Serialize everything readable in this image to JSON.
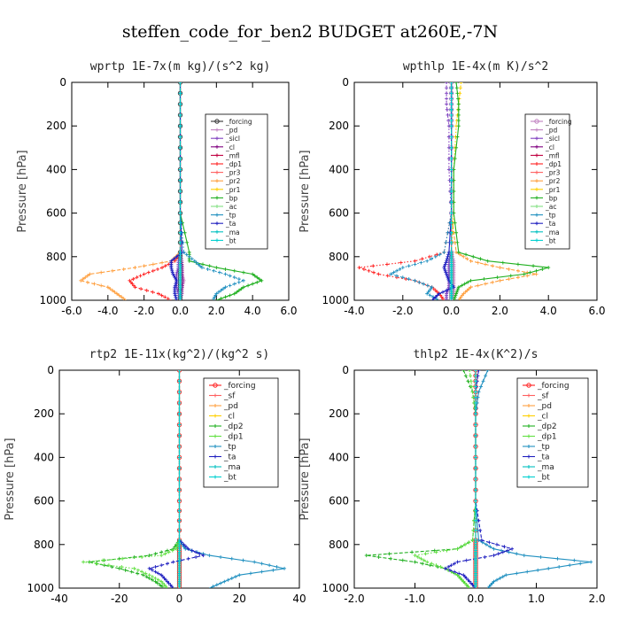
{
  "figure_title": "steffen_code_for_ben2  BUDGET at260E,-7N",
  "chart_data": [
    {
      "type": "line",
      "title": "wprtp   1E-7x(m kg)/(s^2 kg)",
      "ylabel": "Pressure [hPa]",
      "xlim": [
        -6,
        6
      ],
      "ylim": [
        1000,
        0
      ],
      "xticks": [
        "-6.0",
        "-4.0",
        "-2.0",
        "0.0",
        "2.0",
        "4.0",
        "6.0"
      ],
      "xtick_values": [
        -6,
        -4,
        -2,
        0,
        2,
        4,
        6
      ],
      "yticks": [
        "0",
        "200",
        "400",
        "600",
        "800",
        "1000"
      ],
      "ytick_values": [
        0,
        200,
        400,
        600,
        800,
        1000
      ],
      "legend_position": "top-right",
      "pressure": [
        0,
        200,
        400,
        600,
        780,
        820,
        850,
        880,
        910,
        940,
        970,
        1000
      ],
      "series": [
        {
          "name": "_forcing",
          "color": "#333333",
          "values": [
            0,
            0,
            0,
            0,
            0,
            0,
            0,
            0,
            0,
            0,
            0,
            0
          ]
        },
        {
          "name": "_pd",
          "color": "#c080c0",
          "values": [
            0,
            0,
            0,
            0,
            0,
            0.1,
            0.1,
            0.1,
            0.2,
            0.1,
            0.1,
            0
          ]
        },
        {
          "name": "_sicl",
          "color": "#8040c0",
          "values": [
            0,
            0,
            0,
            0,
            0,
            -0.1,
            -0.1,
            -0.2,
            -0.2,
            -0.2,
            -0.1,
            0
          ]
        },
        {
          "name": "_cl",
          "color": "#800080",
          "values": [
            0,
            0,
            0,
            0,
            0,
            0.05,
            0.1,
            0.1,
            0.1,
            0.1,
            0.05,
            0
          ]
        },
        {
          "name": "_mfl",
          "color": "#c00040",
          "values": [
            0,
            0,
            0,
            0,
            0,
            0,
            0,
            0,
            0,
            0,
            0,
            0
          ]
        },
        {
          "name": "_dp1",
          "color": "#ff2020",
          "values": [
            0,
            0,
            0,
            0,
            0,
            -0.3,
            -1.0,
            -2.0,
            -2.8,
            -2.5,
            -1.2,
            -0.5
          ]
        },
        {
          "name": "_pr3",
          "color": "#ff6060",
          "values": [
            0,
            0,
            0,
            0,
            0,
            0,
            0,
            0,
            0,
            0,
            0,
            0
          ]
        },
        {
          "name": "_pr2",
          "color": "#ffa040",
          "values": [
            0,
            0,
            0,
            0,
            0,
            -0.5,
            -2.5,
            -5.0,
            -5.5,
            -4.0,
            -3.5,
            -3.0
          ]
        },
        {
          "name": "_pr1",
          "color": "#ffd000",
          "values": [
            0,
            0,
            0,
            0,
            0,
            0,
            0,
            0,
            0,
            0,
            0,
            0
          ]
        },
        {
          "name": "_bp",
          "color": "#20b020",
          "values": [
            0,
            0,
            0,
            0,
            0.5,
            0.5,
            2.0,
            4.0,
            4.5,
            3.5,
            3.0,
            2.0
          ]
        },
        {
          "name": "_ac",
          "color": "#80e080",
          "values": [
            0,
            0,
            0,
            0,
            0,
            0,
            0,
            0,
            0,
            0,
            0,
            0
          ]
        },
        {
          "name": "_tp",
          "color": "#2090c0",
          "values": [
            0,
            0,
            0,
            0,
            0.2,
            0.8,
            1.2,
            2.5,
            3.5,
            2.5,
            2.0,
            1.8
          ]
        },
        {
          "name": "_ta",
          "color": "#2020c0",
          "values": [
            0,
            0,
            0,
            0,
            0.1,
            -0.5,
            -0.5,
            -0.4,
            -0.2,
            -0.3,
            -0.3,
            -0.2
          ]
        },
        {
          "name": "_ma",
          "color": "#00c0c0",
          "values": [
            0,
            0,
            0,
            0,
            0,
            0,
            0,
            0,
            0,
            0,
            0,
            0
          ]
        },
        {
          "name": "_bt",
          "color": "#00d0d0",
          "values": [
            0,
            0,
            0,
            0,
            0,
            0,
            0,
            0,
            0,
            0,
            0,
            0
          ]
        }
      ]
    },
    {
      "type": "line",
      "title": "wpthlp   1E-4x(m K)/s^2",
      "ylabel": "Pressure [hPa]",
      "xlim": [
        -4,
        6
      ],
      "ylim": [
        1000,
        0
      ],
      "xticks": [
        "-4.0",
        "-2.0",
        "0.0",
        "2.0",
        "4.0",
        "6.0"
      ],
      "xtick_values": [
        -4,
        -2,
        0,
        2,
        4,
        6
      ],
      "yticks": [
        "0",
        "200",
        "400",
        "600",
        "800",
        "1000"
      ],
      "ytick_values": [
        0,
        200,
        400,
        600,
        800,
        1000
      ],
      "legend_position": "top-right",
      "pressure": [
        0,
        100,
        200,
        400,
        600,
        780,
        820,
        850,
        880,
        910,
        940,
        970,
        1000
      ],
      "series": [
        {
          "name": "_forcing",
          "color": "#c080c0",
          "values": [
            0,
            0,
            0,
            0,
            0,
            0,
            0,
            0,
            0,
            0,
            0,
            0,
            0
          ]
        },
        {
          "name": "_pd",
          "color": "#c080c0",
          "values": [
            0,
            0,
            0,
            0,
            0,
            0,
            0.1,
            0.1,
            0.1,
            0.1,
            0.1,
            0.1,
            0
          ]
        },
        {
          "name": "_sicl",
          "color": "#8040c0",
          "values": [
            -0.2,
            -0.2,
            -0.1,
            -0.1,
            0,
            0,
            -0.1,
            -0.1,
            -0.1,
            -0.1,
            -0.1,
            -0.2,
            -0.2
          ]
        },
        {
          "name": "_cl",
          "color": "#800080",
          "values": [
            0,
            0,
            0,
            0,
            0,
            0,
            0,
            0,
            0,
            0,
            0,
            0,
            0
          ]
        },
        {
          "name": "_mfl",
          "color": "#c00040",
          "values": [
            0,
            0,
            0,
            0,
            0,
            0,
            0,
            0,
            0,
            0,
            0,
            0,
            0
          ]
        },
        {
          "name": "_dp1",
          "color": "#ff2020",
          "values": [
            0,
            0,
            0,
            0,
            0,
            -0.3,
            -1.5,
            -3.8,
            -3.0,
            -1.5,
            -0.8,
            -0.5,
            -0.3
          ]
        },
        {
          "name": "_pr3",
          "color": "#ff6060",
          "values": [
            0,
            0,
            0,
            0,
            0,
            0,
            0,
            0,
            0,
            0,
            0,
            0,
            0
          ]
        },
        {
          "name": "_pr2",
          "color": "#ffa040",
          "values": [
            0,
            0,
            0,
            0,
            0,
            0.2,
            0.8,
            2.0,
            3.5,
            2.0,
            0.8,
            0.5,
            0.3
          ]
        },
        {
          "name": "_pr1",
          "color": "#ffd000",
          "values": [
            0.4,
            0.3,
            0.2,
            0.1,
            0.1,
            0,
            0,
            0,
            0,
            0,
            0,
            0,
            0
          ]
        },
        {
          "name": "_bp",
          "color": "#20b020",
          "values": [
            0.2,
            0.3,
            0.3,
            0.1,
            0.1,
            0.3,
            1.5,
            4.0,
            3.0,
            0.8,
            0.3,
            0.2,
            0.1
          ]
        },
        {
          "name": "_ac",
          "color": "#80e080",
          "values": [
            0,
            0,
            0,
            0,
            0,
            0,
            0,
            0,
            0,
            0,
            0,
            0,
            0
          ]
        },
        {
          "name": "_tp",
          "color": "#2090c0",
          "values": [
            0,
            0,
            0,
            0,
            0,
            -0.3,
            -1.0,
            -2.0,
            -2.5,
            -1.5,
            -0.8,
            -1.0,
            -0.5
          ]
        },
        {
          "name": "_ta",
          "color": "#2020c0",
          "values": [
            0,
            0,
            0,
            0,
            0,
            -0.1,
            -0.2,
            -0.3,
            -0.2,
            -0.1,
            0.1,
            -0.5,
            -0.8
          ]
        },
        {
          "name": "_ma",
          "color": "#00c0c0",
          "values": [
            0,
            0,
            0,
            0,
            0,
            0,
            0,
            0,
            0,
            0,
            0,
            0,
            0
          ]
        },
        {
          "name": "_bt",
          "color": "#00d0d0",
          "values": [
            0,
            0,
            0,
            0,
            0,
            0,
            0,
            0,
            0,
            0,
            0,
            0,
            0
          ]
        }
      ]
    },
    {
      "type": "line",
      "title": "rtp2   1E-11x(kg^2)/(kg^2 s)",
      "ylabel": "Pressure [hPa]",
      "xlim": [
        -40,
        40
      ],
      "ylim": [
        1000,
        0
      ],
      "xticks": [
        "-40",
        "-20",
        "0",
        "20",
        "40"
      ],
      "xtick_values": [
        -40,
        -20,
        0,
        20,
        40
      ],
      "yticks": [
        "0",
        "200",
        "400",
        "600",
        "800",
        "1000"
      ],
      "ytick_values": [
        0,
        200,
        400,
        600,
        800,
        1000
      ],
      "legend_position": "top-right",
      "pressure": [
        0,
        200,
        400,
        600,
        780,
        820,
        850,
        880,
        910,
        940,
        970,
        1000
      ],
      "series": [
        {
          "name": "_forcing",
          "color": "#ff2020",
          "values": [
            0,
            0,
            0,
            0,
            0,
            0,
            0,
            0,
            0,
            0,
            0,
            0
          ]
        },
        {
          "name": "_sf",
          "color": "#ff6060",
          "values": [
            0,
            0,
            0,
            0,
            0,
            0,
            0,
            0,
            0,
            0,
            0,
            0
          ]
        },
        {
          "name": "_pd",
          "color": "#ffa040",
          "values": [
            0,
            0,
            0,
            0,
            0,
            0,
            0,
            0,
            0,
            0,
            0,
            0
          ]
        },
        {
          "name": "_cl",
          "color": "#ffd000",
          "values": [
            0,
            0,
            0,
            0,
            0,
            0,
            0,
            0,
            0,
            0,
            0,
            0
          ]
        },
        {
          "name": "_dp2",
          "color": "#20b020",
          "values": [
            0,
            0,
            0,
            0,
            0,
            -2,
            -10,
            -30,
            -20,
            -12,
            -8,
            -5
          ]
        },
        {
          "name": "_dp1",
          "color": "#60e040",
          "values": [
            0,
            0,
            0,
            0,
            0,
            -1,
            -6,
            -32,
            -15,
            -10,
            -6,
            -4
          ]
        },
        {
          "name": "_tp",
          "color": "#2090c0",
          "values": [
            0,
            0,
            0,
            0,
            0,
            2,
            10,
            25,
            35,
            20,
            15,
            10
          ]
        },
        {
          "name": "_ta",
          "color": "#2020c0",
          "values": [
            0,
            0,
            0,
            0,
            0,
            3,
            8,
            -2,
            -10,
            -6,
            -4,
            -2
          ]
        },
        {
          "name": "_ma",
          "color": "#00c0c0",
          "values": [
            0,
            0,
            0,
            0,
            0,
            0,
            0,
            0,
            0,
            0,
            0,
            0
          ]
        },
        {
          "name": "_bt",
          "color": "#00d0d0",
          "values": [
            0,
            0,
            0,
            0,
            0,
            0,
            0,
            0,
            0,
            0,
            0,
            0
          ]
        }
      ]
    },
    {
      "type": "line",
      "title": "thlp2   1E-4x(K^2)/s",
      "ylabel": "Pressure [hPa]",
      "xlim": [
        -2,
        2
      ],
      "ylim": [
        1000,
        0
      ],
      "xticks": [
        "-2.0",
        "-1.0",
        "0.0",
        "1.0",
        "2.0"
      ],
      "xtick_values": [
        -2,
        -1,
        0,
        1,
        2
      ],
      "yticks": [
        "0",
        "200",
        "400",
        "600",
        "800",
        "1000"
      ],
      "ytick_values": [
        0,
        200,
        400,
        600,
        800,
        1000
      ],
      "legend_position": "top-right",
      "pressure": [
        0,
        100,
        200,
        400,
        600,
        780,
        820,
        850,
        880,
        910,
        940,
        970,
        1000
      ],
      "series": [
        {
          "name": "_forcing",
          "color": "#ff2020",
          "values": [
            0,
            0,
            0,
            0,
            0,
            0,
            0,
            0,
            0,
            0,
            0,
            0,
            0
          ]
        },
        {
          "name": "_sf",
          "color": "#ff6060",
          "values": [
            0,
            0,
            0,
            0,
            0,
            0,
            0,
            0,
            0,
            0,
            0,
            0,
            0
          ]
        },
        {
          "name": "_pd",
          "color": "#ffa040",
          "values": [
            0,
            0,
            0,
            0,
            0,
            0,
            0,
            0,
            0,
            0,
            0,
            0,
            0
          ]
        },
        {
          "name": "_cl",
          "color": "#ffd000",
          "values": [
            0,
            0,
            0,
            0,
            0,
            0,
            0,
            0,
            0,
            0,
            0,
            0,
            0
          ]
        },
        {
          "name": "_dp2",
          "color": "#20b020",
          "values": [
            -0.2,
            -0.05,
            0,
            0,
            0,
            -0.05,
            -0.3,
            -1.8,
            -1.0,
            -0.5,
            -0.3,
            -0.2,
            -0.1
          ]
        },
        {
          "name": "_dp1",
          "color": "#60e040",
          "values": [
            -0.1,
            -0.05,
            0,
            0,
            0,
            -0.05,
            -0.3,
            -1.0,
            -0.8,
            -0.5,
            -0.3,
            -0.2,
            -0.1
          ]
        },
        {
          "name": "_tp",
          "color": "#2090c0",
          "values": [
            0.2,
            0.05,
            0,
            0,
            0,
            0.05,
            0.3,
            0.8,
            1.9,
            1.2,
            0.5,
            0.3,
            0.2
          ]
        },
        {
          "name": "_ta",
          "color": "#2020c0",
          "values": [
            0.05,
            0,
            0,
            0,
            0,
            0.1,
            0.6,
            0.3,
            -0.3,
            -0.5,
            -0.2,
            -0.1,
            0
          ]
        },
        {
          "name": "_ma",
          "color": "#00c0c0",
          "values": [
            0,
            0,
            0,
            0,
            0,
            0,
            0,
            0,
            0,
            0,
            0,
            0,
            0
          ]
        },
        {
          "name": "_bt",
          "color": "#00d0d0",
          "values": [
            0,
            0,
            0,
            0,
            0,
            0,
            0,
            0,
            0,
            0,
            0,
            0,
            0
          ]
        }
      ]
    }
  ]
}
